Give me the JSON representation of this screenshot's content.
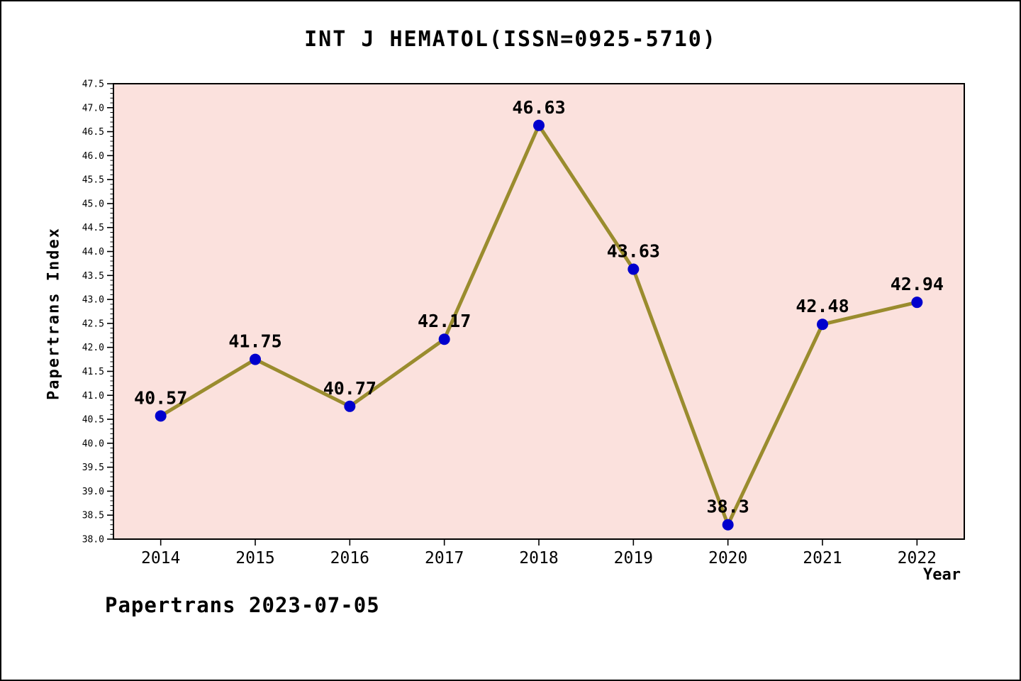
{
  "title": "INT J HEMATOL(ISSN=0925-5710)",
  "footer": "Papertrans 2023-07-05",
  "chart_data": {
    "type": "line",
    "title": "INT J HEMATOL(ISSN=0925-5710)",
    "xlabel": "Year",
    "ylabel": "Papertrans Index",
    "x": [
      2014,
      2015,
      2016,
      2017,
      2018,
      2019,
      2020,
      2021,
      2022
    ],
    "values": [
      40.57,
      41.75,
      40.77,
      42.17,
      46.63,
      43.63,
      38.3,
      42.48,
      42.94
    ],
    "point_labels": [
      "40.57",
      "41.75",
      "40.77",
      "42.17",
      "46.63",
      "43.63",
      "38.3",
      "42.48",
      "42.94"
    ],
    "xlim": [
      2013.5,
      2022.5
    ],
    "ylim": [
      38.0,
      47.5
    ],
    "y_tick_step": 0.5,
    "y_minor_step": 0.1,
    "grid": false,
    "legend": false,
    "colors": {
      "plot_bg": "#FBE1DD",
      "line": "#9A8C2E",
      "marker": "#0000CD",
      "axis": "#000000",
      "text": "#000000"
    }
  }
}
